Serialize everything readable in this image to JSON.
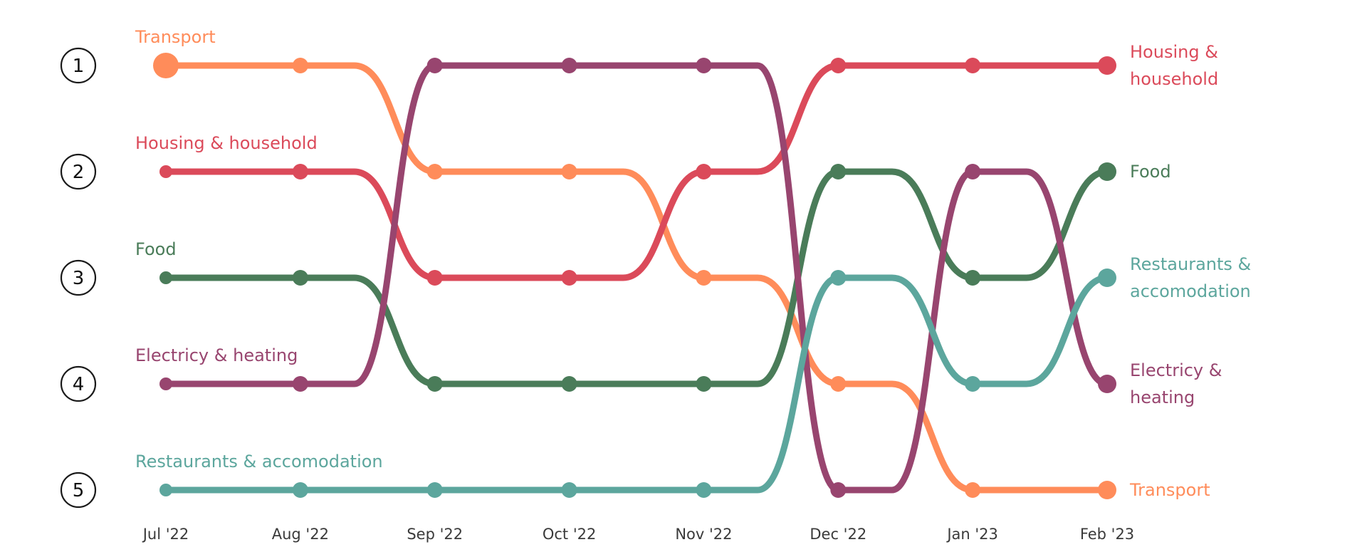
{
  "chart_data": {
    "type": "line",
    "subtype": "bump",
    "title": "",
    "xlabel": "",
    "ylabel": "",
    "categories": [
      "Jul '22",
      "Aug '22",
      "Sep '22",
      "Oct '22",
      "Nov '22",
      "Dec '22",
      "Jan '23",
      "Feb '23"
    ],
    "rank_labels": [
      "1",
      "2",
      "3",
      "4",
      "5"
    ],
    "ylim": [
      1,
      5
    ],
    "y_inverted": true,
    "grid": false,
    "legend": "none",
    "series": [
      {
        "name": "Transport",
        "start_label": "Transport",
        "end_label_lines": [
          "Transport"
        ],
        "color": "#FF8C5A",
        "values": [
          1,
          1,
          2,
          2,
          3,
          4,
          5,
          5
        ]
      },
      {
        "name": "Housing & household",
        "start_label": "Housing & household",
        "end_label_lines": [
          "Housing &",
          "household"
        ],
        "color": "#DB4A5A",
        "values": [
          2,
          2,
          3,
          3,
          2,
          1,
          1,
          1
        ]
      },
      {
        "name": "Food",
        "start_label": "Food",
        "end_label_lines": [
          "Food"
        ],
        "color": "#4A7C59",
        "values": [
          3,
          3,
          4,
          4,
          4,
          2,
          3,
          2
        ]
      },
      {
        "name": "Electricy & heating",
        "start_label": "Electricy & heating",
        "end_label_lines": [
          "Electricy &",
          "heating"
        ],
        "color": "#98456F",
        "values": [
          4,
          4,
          1,
          1,
          1,
          5,
          2,
          4
        ]
      },
      {
        "name": "Restaurants & accomodation",
        "start_label": "Restaurants & accomodation",
        "end_label_lines": [
          "Restaurants &",
          "accomodation"
        ],
        "color": "#5CA69D",
        "values": [
          5,
          5,
          5,
          5,
          5,
          3,
          4,
          3
        ]
      }
    ]
  }
}
